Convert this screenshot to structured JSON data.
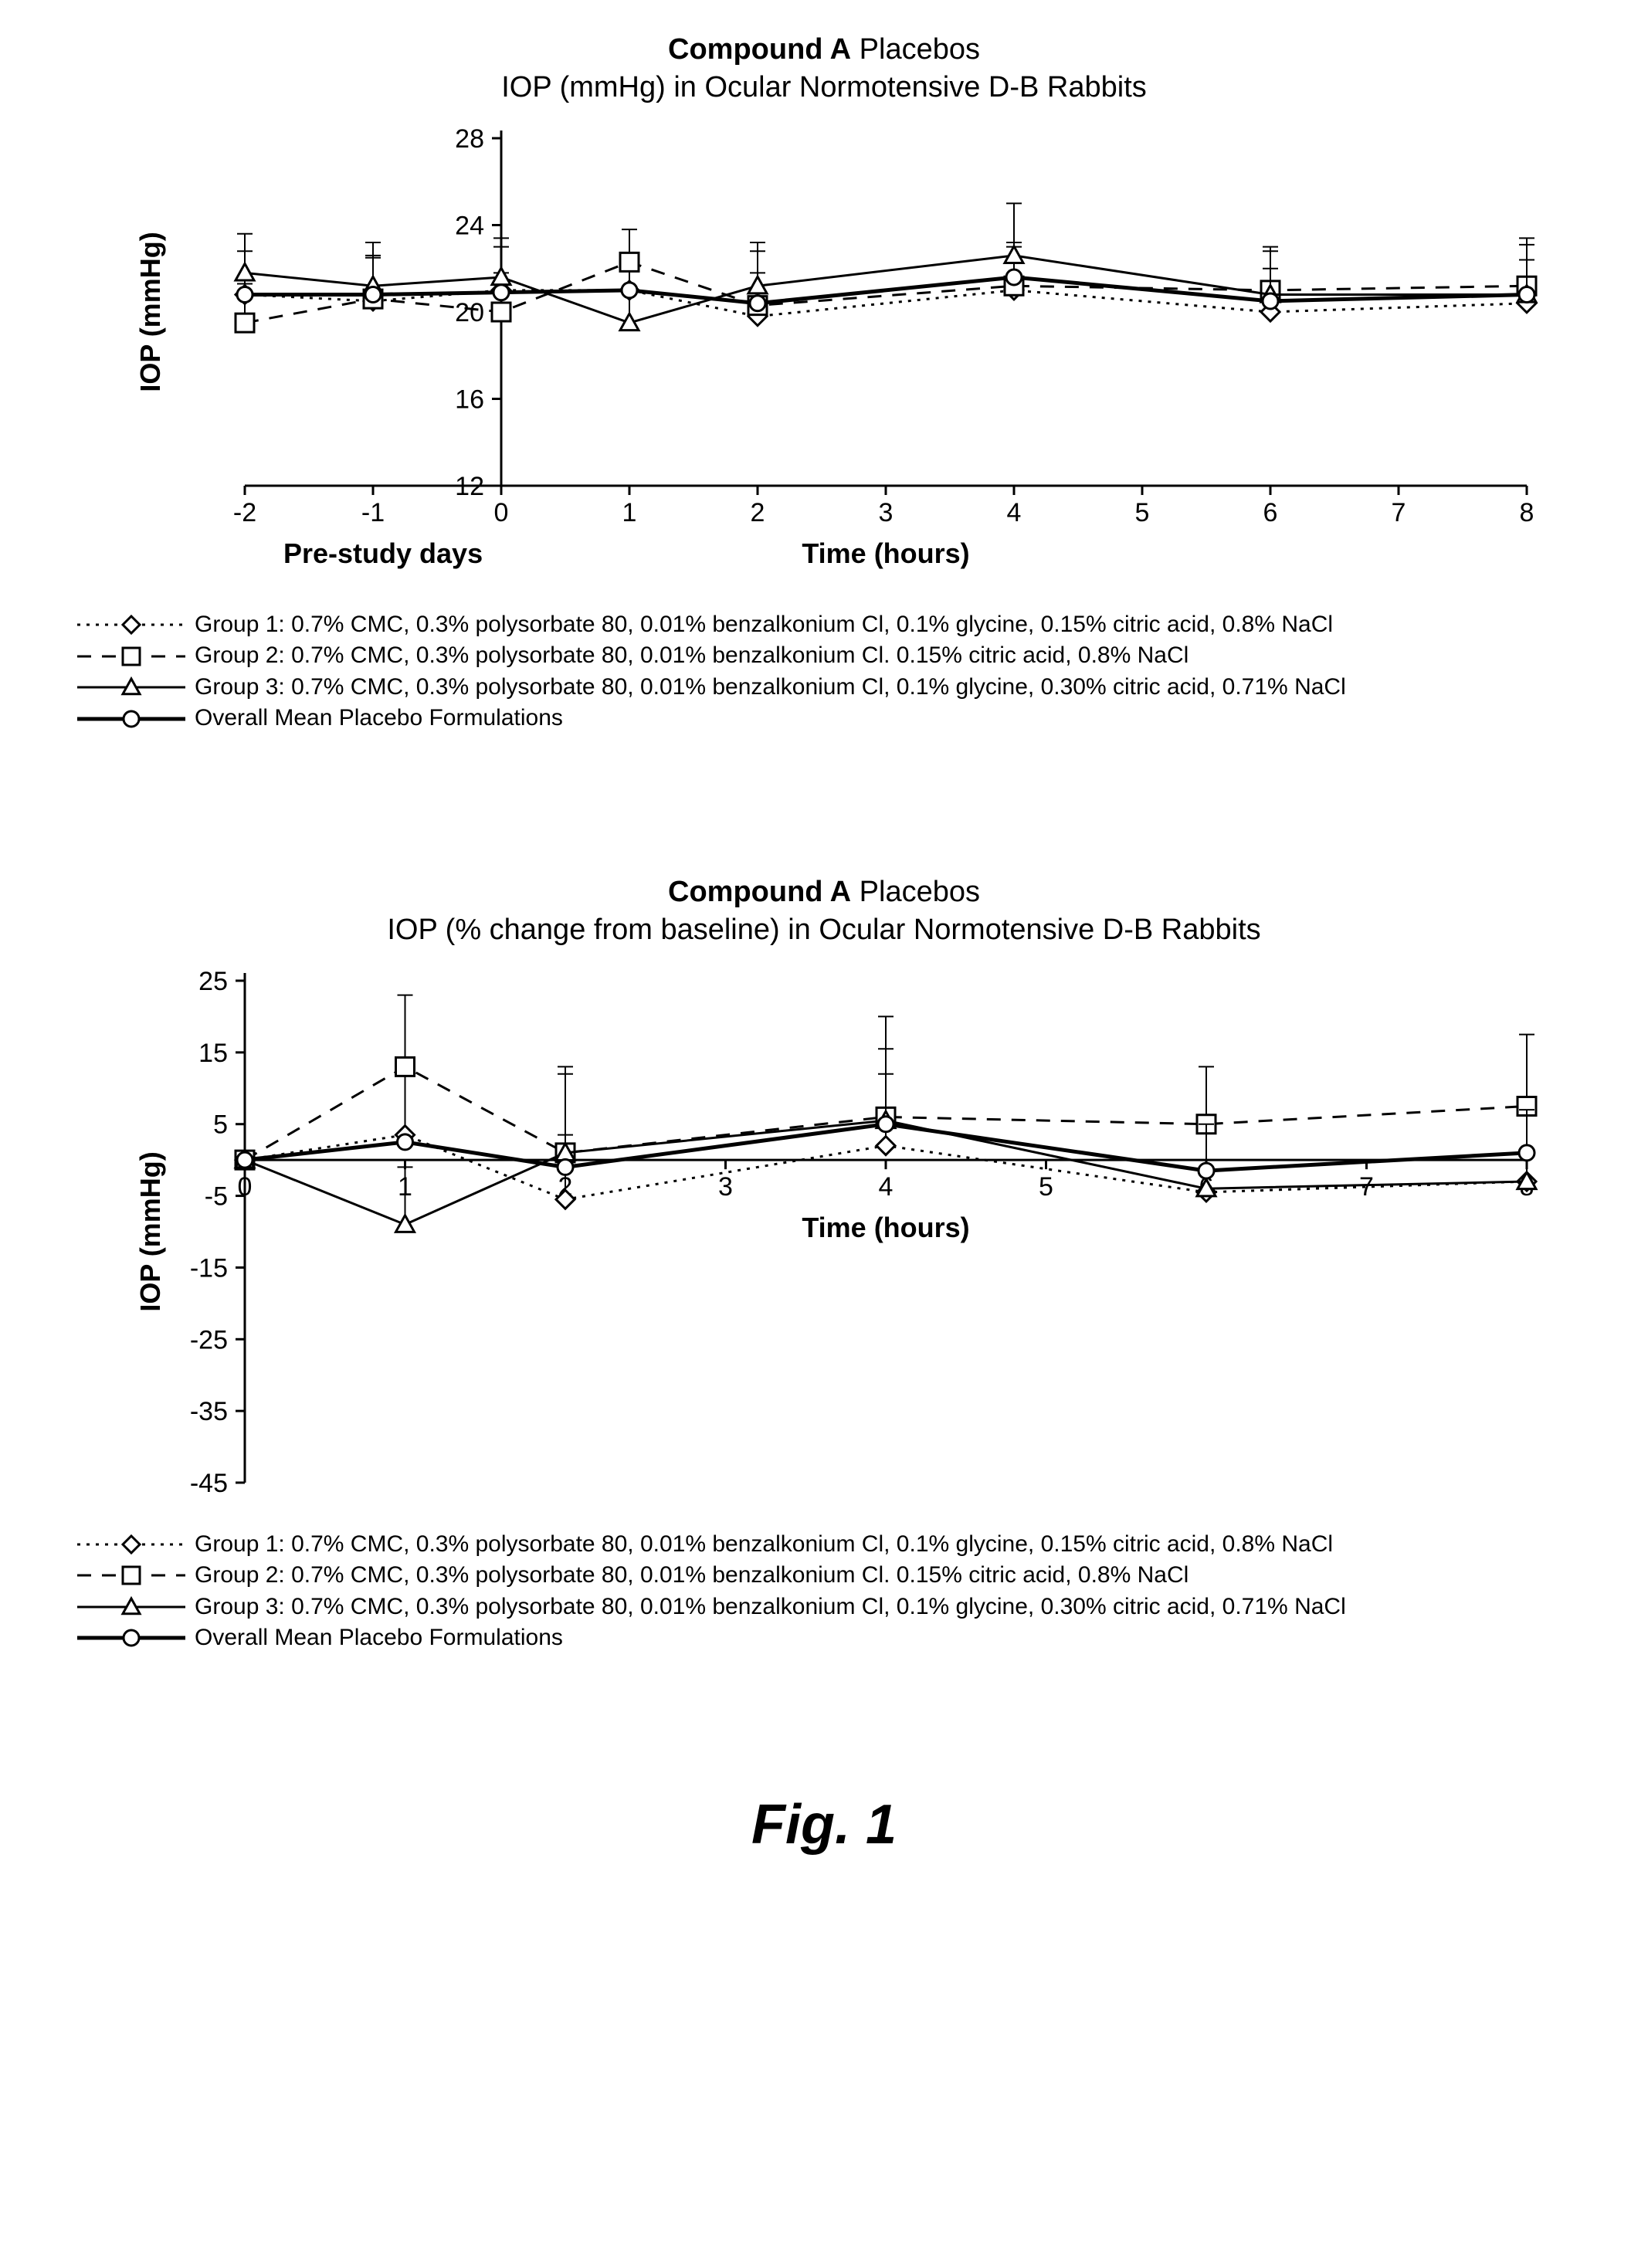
{
  "figure_caption": "Fig. 1",
  "colors": {
    "stroke": "#000000",
    "background": "#ffffff",
    "marker_fill": "#ffffff"
  },
  "chart1": {
    "type": "line",
    "title_bold": "Compound A",
    "title_rest": " Placebos",
    "subtitle": "IOP (mmHg) in Ocular Normotensive D-B Rabbits",
    "xlabel": "Time (hours)",
    "xlabel_left": "Pre-study days",
    "ylabel": "IOP (mmHg)",
    "xlim": [
      -2,
      8
    ],
    "ylim": [
      12,
      28
    ],
    "xticks": [
      -2,
      -1,
      0,
      1,
      2,
      3,
      4,
      5,
      6,
      7,
      8
    ],
    "yticks": [
      12,
      16,
      20,
      24,
      28
    ],
    "tick_fontsize": 34,
    "label_fontsize": 36,
    "title_fontsize": 38,
    "line_width": 3,
    "line_width_bold": 5,
    "marker_size": 10,
    "series": [
      {
        "name": "group1",
        "label": "Group 1: 0.7% CMC, 0.3% polysorbate 80, 0.01% benzalkonium Cl, 0.1% glycine, 0.15% citric acid, 0.8% NaCl",
        "marker": "diamond",
        "dash": "dotted",
        "x": [
          -2,
          -1,
          0,
          1,
          2,
          4,
          6,
          8
        ],
        "y": [
          20.8,
          20.5,
          21.0,
          21.0,
          19.8,
          21.0,
          20.0,
          20.4
        ],
        "err": [
          2.0,
          2.0,
          2.0,
          1.5,
          2.0,
          2.0,
          2.0,
          2.0
        ]
      },
      {
        "name": "group2",
        "label": "Group 2: 0.7% CMC, 0.3% polysorbate 80, 0.01% benzalkonium Cl. 0.15% citric acid, 0.8% NaCl",
        "marker": "square",
        "dash": "dashed",
        "x": [
          -2,
          -1,
          0,
          1,
          2,
          4,
          6,
          8
        ],
        "y": [
          19.5,
          20.6,
          20.0,
          22.3,
          20.3,
          21.2,
          21.0,
          21.2
        ],
        "err": [
          1.8,
          2.0,
          1.8,
          1.5,
          2.5,
          2.0,
          2.0,
          2.2
        ]
      },
      {
        "name": "group3",
        "label": "Group 3: 0.7% CMC, 0.3% polysorbate 80, 0.01% benzalkonium Cl, 0.1% glycine, 0.30% citric acid, 0.71% NaCl",
        "marker": "triangle",
        "dash": "solid",
        "x": [
          -2,
          -1,
          0,
          1,
          2,
          4,
          6,
          8
        ],
        "y": [
          21.8,
          21.2,
          21.6,
          19.5,
          21.2,
          22.6,
          20.8,
          20.8
        ],
        "err": [
          1.8,
          2.0,
          1.8,
          1.5,
          2.0,
          2.4,
          2.0,
          2.3
        ]
      },
      {
        "name": "overall",
        "label": "Overall Mean Placebo Formulations",
        "marker": "circle",
        "dash": "solid-bold",
        "x": [
          -2,
          -1,
          0,
          1,
          2,
          4,
          6,
          8
        ],
        "y": [
          20.8,
          20.8,
          20.9,
          21.0,
          20.4,
          21.6,
          20.5,
          20.8
        ],
        "err": [
          0,
          0,
          0,
          0,
          0,
          0,
          0,
          0
        ]
      }
    ]
  },
  "chart2": {
    "type": "line",
    "title_bold": "Compound A",
    "title_rest": " Placebos",
    "subtitle": "IOP (% change from baseline) in Ocular Normotensive D-B Rabbits",
    "xlabel": "Time (hours)",
    "ylabel": "IOP (mmHg)",
    "xlim": [
      0,
      8
    ],
    "ylim": [
      -45,
      25
    ],
    "xticks": [
      0,
      1,
      2,
      3,
      4,
      5,
      6,
      7,
      8
    ],
    "yticks": [
      -45,
      -35,
      -25,
      -15,
      -5,
      5,
      15,
      25
    ],
    "tick_fontsize": 34,
    "label_fontsize": 36,
    "title_fontsize": 38,
    "line_width": 3,
    "line_width_bold": 5,
    "marker_size": 10,
    "series": [
      {
        "name": "group1",
        "label": "Group 1: 0.7% CMC, 0.3% polysorbate 80, 0.01% benzalkonium Cl, 0.1% glycine, 0.15% citric acid, 0.8% NaCl",
        "marker": "diamond",
        "dash": "dotted",
        "x": [
          0,
          1,
          2,
          4,
          6,
          8
        ],
        "y": [
          0,
          3.5,
          -5.5,
          2.0,
          -4.5,
          -3.0
        ],
        "err": [
          0,
          10,
          9,
          10,
          10,
          10
        ]
      },
      {
        "name": "group2",
        "label": "Group 2: 0.7% CMC, 0.3% polysorbate 80, 0.01% benzalkonium Cl. 0.15% citric acid, 0.8% NaCl",
        "marker": "square",
        "dash": "dashed",
        "x": [
          0,
          1,
          2,
          4,
          6,
          8
        ],
        "y": [
          0,
          13.0,
          1.0,
          6.0,
          5.0,
          7.5
        ],
        "err": [
          0,
          10,
          12,
          14,
          8,
          10
        ]
      },
      {
        "name": "group3",
        "label": "Group 3: 0.7% CMC, 0.3% polysorbate 80, 0.01% benzalkonium Cl, 0.1% glycine, 0.30% citric acid, 0.71% NaCl",
        "marker": "triangle",
        "dash": "solid",
        "x": [
          0,
          1,
          2,
          4,
          6,
          8
        ],
        "y": [
          0,
          -9.0,
          1.0,
          5.5,
          -4.0,
          -3.0
        ],
        "err": [
          0,
          8,
          11,
          10,
          9,
          10
        ]
      },
      {
        "name": "overall",
        "label": "Overall Mean Placebo Formulations",
        "marker": "circle",
        "dash": "solid-bold",
        "x": [
          0,
          1,
          2,
          4,
          6,
          8
        ],
        "y": [
          0,
          2.5,
          -1.0,
          5.0,
          -1.5,
          1.0
        ],
        "err": [
          0,
          0,
          0,
          0,
          0,
          0
        ]
      }
    ]
  },
  "legend_items": [
    {
      "marker": "diamond",
      "dash": "dotted",
      "key": "group1"
    },
    {
      "marker": "square",
      "dash": "dashed",
      "key": "group2"
    },
    {
      "marker": "triangle",
      "dash": "solid",
      "key": "group3"
    },
    {
      "marker": "circle",
      "dash": "solid-bold",
      "key": "overall"
    }
  ]
}
